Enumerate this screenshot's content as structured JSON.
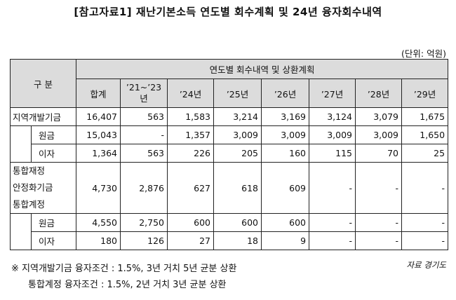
{
  "title": "[참고자료1] 재난기본소득 연도별 회수계획 및 24년 융자회수내역",
  "unit": "(단위: 억원)",
  "header": {
    "category": "구  분",
    "group": "연도별 회수내역 및 상환계획",
    "columns": [
      "합계",
      "’21~’23년",
      "’24년",
      "’25년",
      "’26년",
      "’27년",
      "’28년",
      "’29년"
    ]
  },
  "rows": {
    "regional_total": {
      "label": "지역개발기금",
      "values": [
        "16,407",
        "563",
        "1,583",
        "3,214",
        "3,169",
        "3,124",
        "3,079",
        "1,675"
      ]
    },
    "regional_principal": {
      "label": "원금",
      "values": [
        "15,043",
        "-",
        "1,357",
        "3,009",
        "3,009",
        "3,009",
        "3,009",
        "1,650"
      ]
    },
    "regional_interest": {
      "label": "이자",
      "values": [
        "1,364",
        "563",
        "226",
        "205",
        "160",
        "115",
        "70",
        "25"
      ]
    },
    "integrated_total": {
      "label_lines": [
        "통합재정",
        "안정화기금",
        "통합계정"
      ],
      "values": [
        "4,730",
        "2,876",
        "627",
        "618",
        "609",
        "-",
        "-",
        "-"
      ]
    },
    "integrated_principal": {
      "label": "원금",
      "values": [
        "4,550",
        "2,750",
        "600",
        "600",
        "600",
        "-",
        "-",
        "-"
      ]
    },
    "integrated_interest": {
      "label": "이자",
      "values": [
        "180",
        "126",
        "27",
        "18",
        "9",
        "-",
        "-",
        "-"
      ]
    }
  },
  "notes": [
    "※ 지역개발기금 융자조건 : 1.5%, 3년 거치 5년 균분 상환",
    "통합계정 융자조건 : 1.5%, 2년 거치 3년 균분 상환"
  ],
  "source": "자료 경기도"
}
